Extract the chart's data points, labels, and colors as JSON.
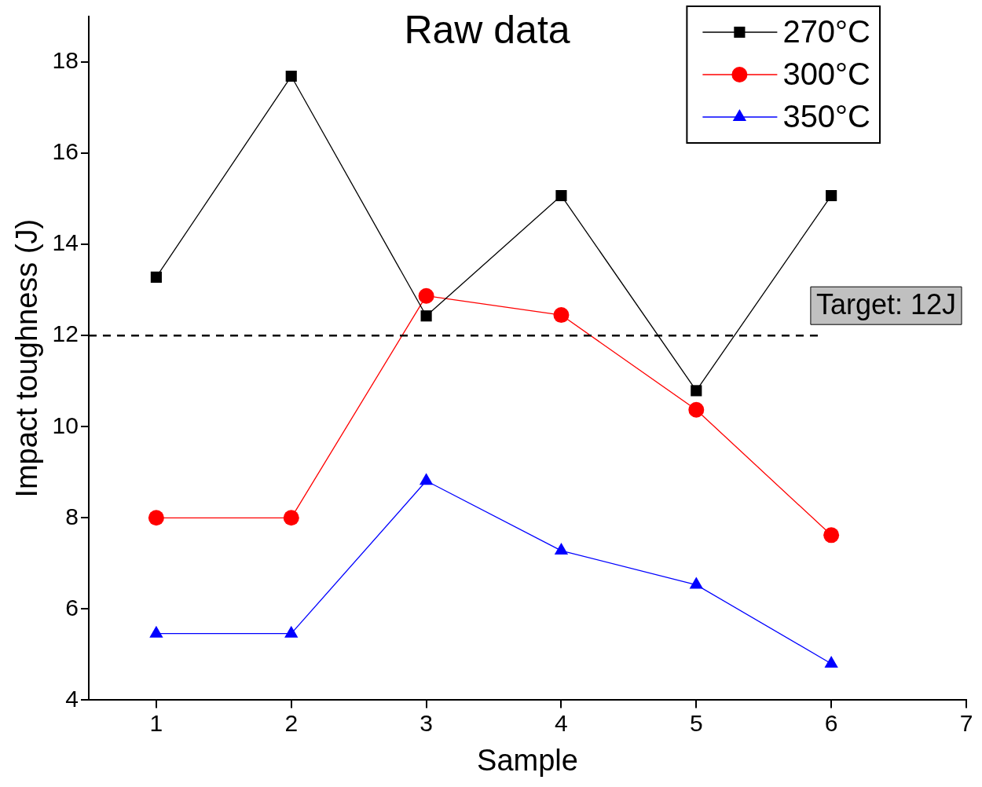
{
  "chart_data": {
    "type": "line",
    "title": "Raw data",
    "xlabel": "Sample",
    "ylabel": "Impact toughness (J)",
    "x": [
      1,
      2,
      3,
      4,
      5,
      6
    ],
    "series": [
      {
        "name": "270°C",
        "color": "#000000",
        "marker": "square",
        "values": [
          13.28,
          17.69,
          12.43,
          15.07,
          10.79,
          15.07
        ]
      },
      {
        "name": "300°C",
        "color": "#ff0000",
        "marker": "circle",
        "values": [
          8.0,
          8.0,
          12.87,
          12.45,
          10.37,
          7.62
        ]
      },
      {
        "name": "350°C",
        "color": "#0000ff",
        "marker": "triangle",
        "values": [
          5.46,
          5.46,
          8.81,
          7.28,
          6.53,
          4.8
        ]
      }
    ],
    "xlim": [
      0.5,
      7
    ],
    "xticks": [
      1,
      2,
      3,
      4,
      5,
      6,
      7
    ],
    "ylim": [
      4,
      19
    ],
    "yticks": [
      4,
      6,
      8,
      10,
      12,
      14,
      16,
      18
    ],
    "ref_lines": [
      {
        "axis": "y",
        "value": 12,
        "label": "Target: 12J",
        "color": "#000000",
        "line_style": "dashed"
      }
    ],
    "grid": false,
    "legend": "top right",
    "line_style": "solid"
  }
}
